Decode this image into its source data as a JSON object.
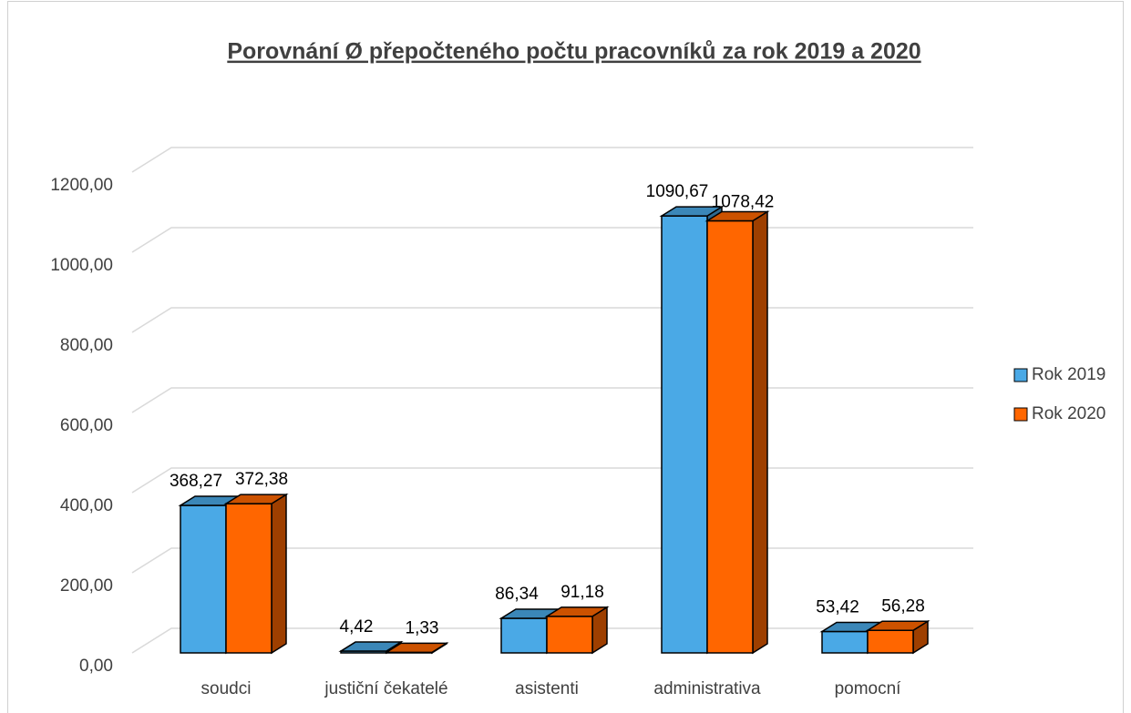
{
  "chart_data": {
    "type": "bar3d",
    "title": "Porovnání Ø přepočteného počtu pracovníků za rok 2019 a 2020",
    "categories": [
      "soudci",
      "justiční čekatelé",
      "asistenti",
      "administrativa",
      "pomocní"
    ],
    "series": [
      {
        "name": "Rok 2019",
        "color": "#4aa9e6",
        "values": [
          368.27,
          4.42,
          86.34,
          1090.67,
          53.42
        ],
        "value_labels": [
          "368,27",
          "4,42",
          "86,34",
          "1090,67",
          "53,42"
        ]
      },
      {
        "name": "Rok 2020",
        "color": "#ff6600",
        "values": [
          372.38,
          1.33,
          91.18,
          1078.42,
          56.28
        ],
        "value_labels": [
          "372,38",
          "1,33",
          "91,18",
          "1078,42",
          "56,28"
        ]
      }
    ],
    "ylim": [
      0,
      1200
    ],
    "yticks": [
      {
        "value": 0,
        "label": "0,00"
      },
      {
        "value": 200,
        "label": "200,00"
      },
      {
        "value": 400,
        "label": "400,00"
      },
      {
        "value": 600,
        "label": "600,00"
      },
      {
        "value": 800,
        "label": "800,00"
      },
      {
        "value": 1000,
        "label": "1000,00"
      },
      {
        "value": 1200,
        "label": "1200,00"
      }
    ],
    "grid": true,
    "legend": "right"
  }
}
